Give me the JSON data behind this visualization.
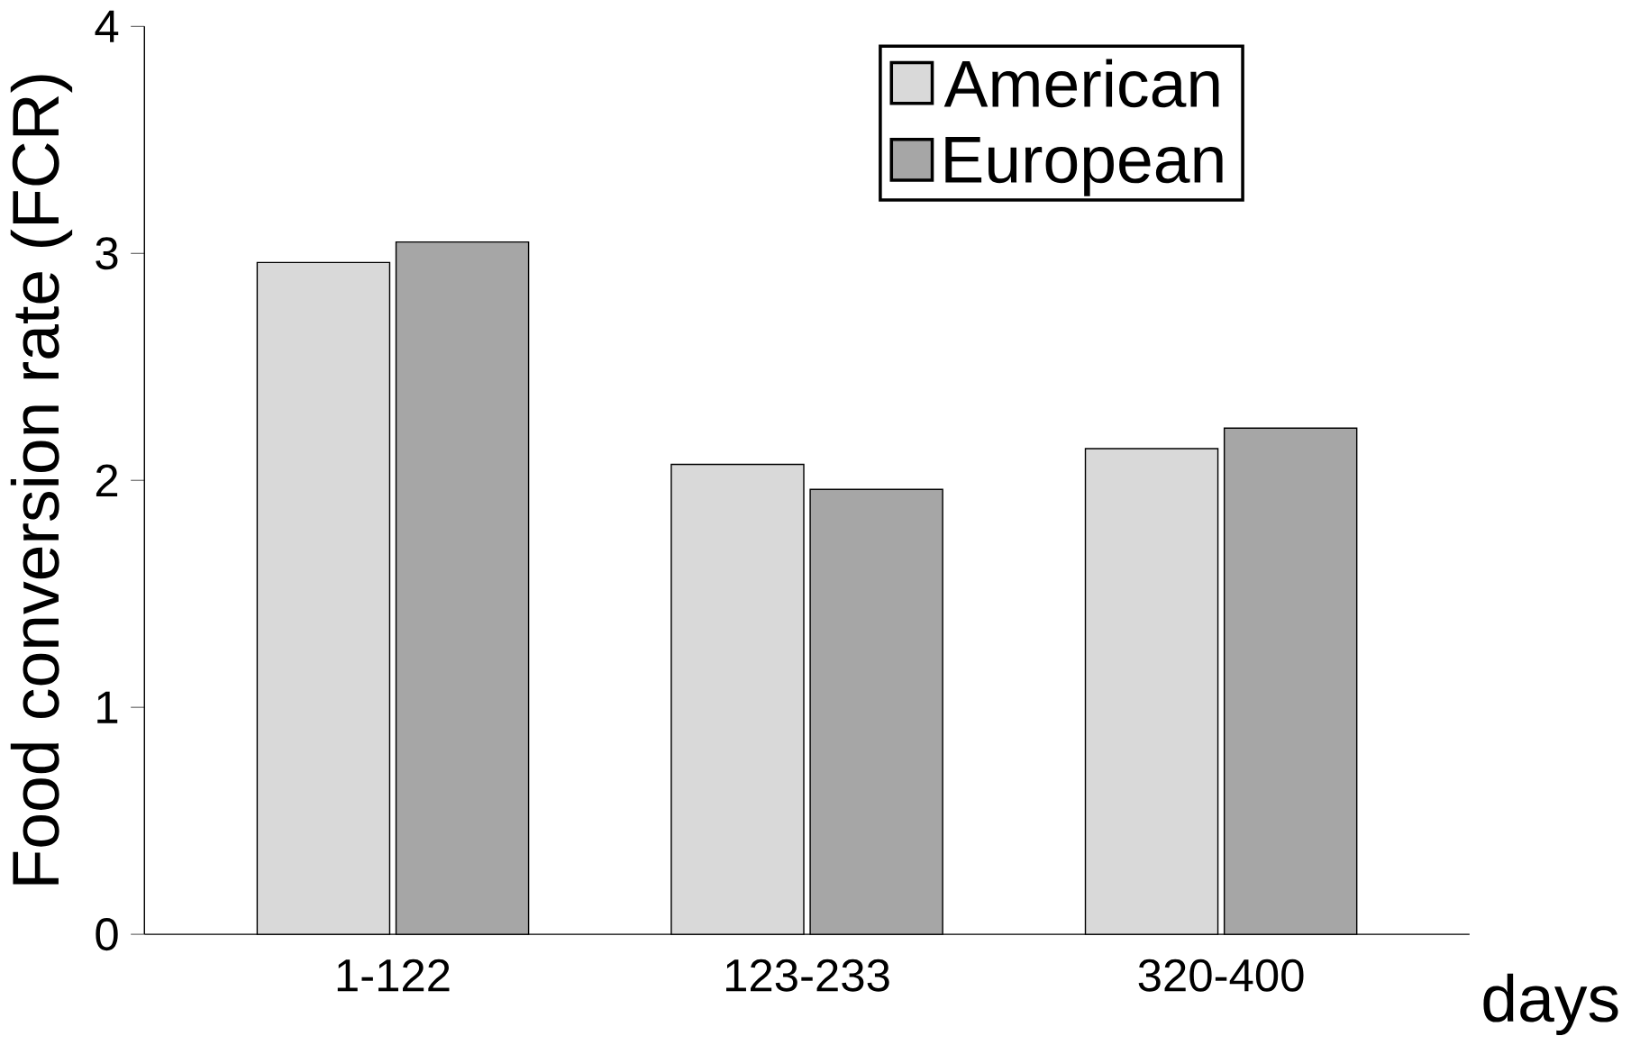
{
  "chart_data": {
    "type": "bar",
    "ylabel": "Food conversion rate (FCR)",
    "xlabel": "days",
    "categories": [
      "1-122",
      "123-233",
      "320-400"
    ],
    "series": [
      {
        "name": "American",
        "color": "#d9d9d9",
        "values": [
          2.96,
          2.07,
          2.14
        ]
      },
      {
        "name": "European",
        "color": "#a6a6a6",
        "values": [
          3.05,
          1.96,
          2.23
        ]
      }
    ],
    "ylim": [
      0,
      4
    ],
    "yticks": [
      0,
      1,
      2,
      3,
      4
    ],
    "grid": false,
    "legend": "top right"
  }
}
